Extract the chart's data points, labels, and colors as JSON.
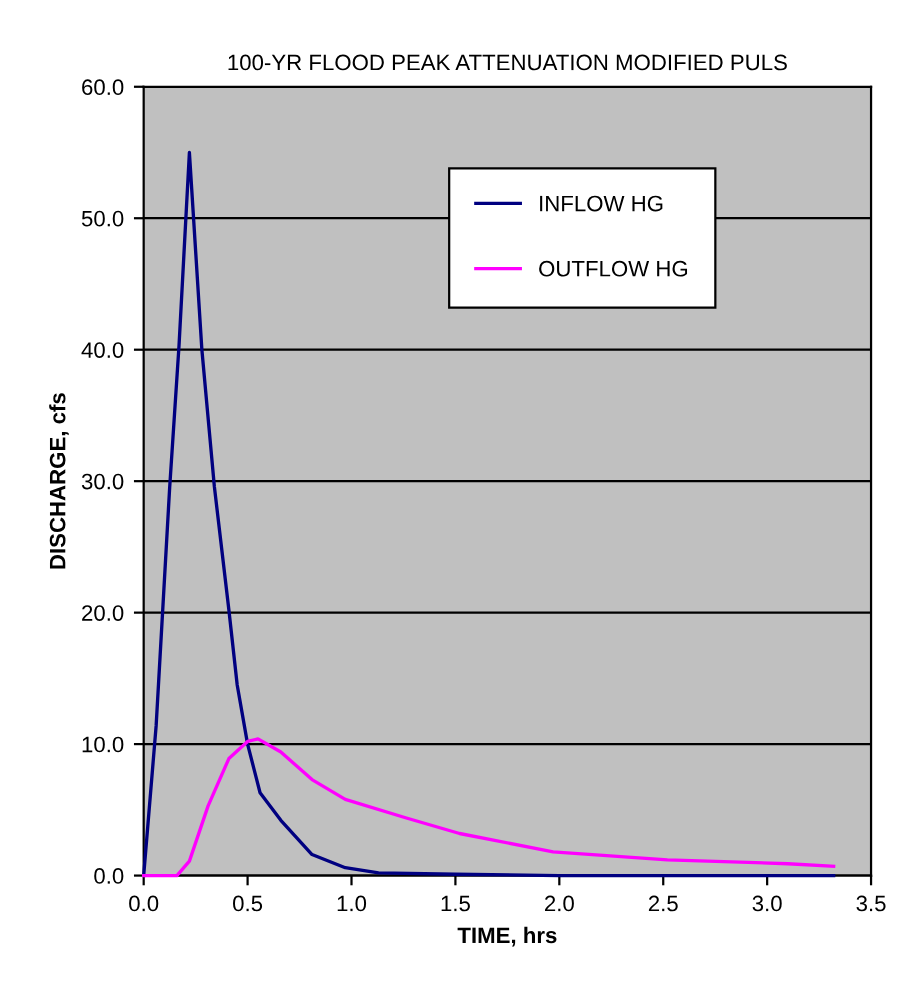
{
  "chart_data": {
    "type": "line",
    "title": "100-YR FLOOD PEAK ATTENUATION MODIFIED PULS",
    "xlabel": "TIME, hrs",
    "ylabel": "DISCHARGE, cfs",
    "series": [
      {
        "name": "INFLOW HG",
        "color": "#000080",
        "x": [
          0,
          0.06,
          0.125,
          0.17,
          0.22,
          0.28,
          0.34,
          0.41,
          0.45,
          0.5,
          0.56,
          0.66,
          0.81,
          0.97,
          1.13,
          1.5,
          2.0,
          2.5,
          3.0,
          3.32
        ],
        "values": [
          0,
          11.4,
          29.5,
          40.3,
          55,
          40,
          29.6,
          20.2,
          14.5,
          10,
          6.3,
          4.2,
          1.6,
          0.6,
          0.2,
          0.1,
          0,
          0,
          0,
          0
        ]
      },
      {
        "name": "OUTFLOW HG",
        "color": "#ff00ff",
        "x": [
          0,
          0.16,
          0.22,
          0.31,
          0.41,
          0.5,
          0.55,
          0.66,
          0.81,
          0.97,
          1.26,
          1.52,
          1.97,
          2.52,
          3.1,
          3.32
        ],
        "values": [
          0,
          0,
          1.1,
          5.3,
          8.9,
          10.2,
          10.4,
          9.4,
          7.3,
          5.8,
          4.4,
          3.2,
          1.8,
          1.2,
          0.9,
          0.7
        ]
      }
    ],
    "xlim": [
      0,
      3.5
    ],
    "ylim": [
      0,
      60
    ],
    "xticks": [
      {
        "value": 0,
        "label": "0.0"
      },
      {
        "value": 0.5,
        "label": "0.5"
      },
      {
        "value": 1,
        "label": "1.0"
      },
      {
        "value": 1.5,
        "label": "1.5"
      },
      {
        "value": 2,
        "label": "2.0"
      },
      {
        "value": 2.5,
        "label": "2.5"
      },
      {
        "value": 3,
        "label": "3.0"
      },
      {
        "value": 3.5,
        "label": "3.5"
      }
    ],
    "yticks": [
      {
        "value": 0,
        "label": "0.0"
      },
      {
        "value": 10,
        "label": "10.0"
      },
      {
        "value": 20,
        "label": "20.0"
      },
      {
        "value": 30,
        "label": "30.0"
      },
      {
        "value": 40,
        "label": "40.0"
      },
      {
        "value": 50,
        "label": "50.0"
      },
      {
        "value": 60,
        "label": "60.0"
      }
    ],
    "grid": "y",
    "legend": "top right",
    "marker": "none",
    "line_style": "solid"
  }
}
